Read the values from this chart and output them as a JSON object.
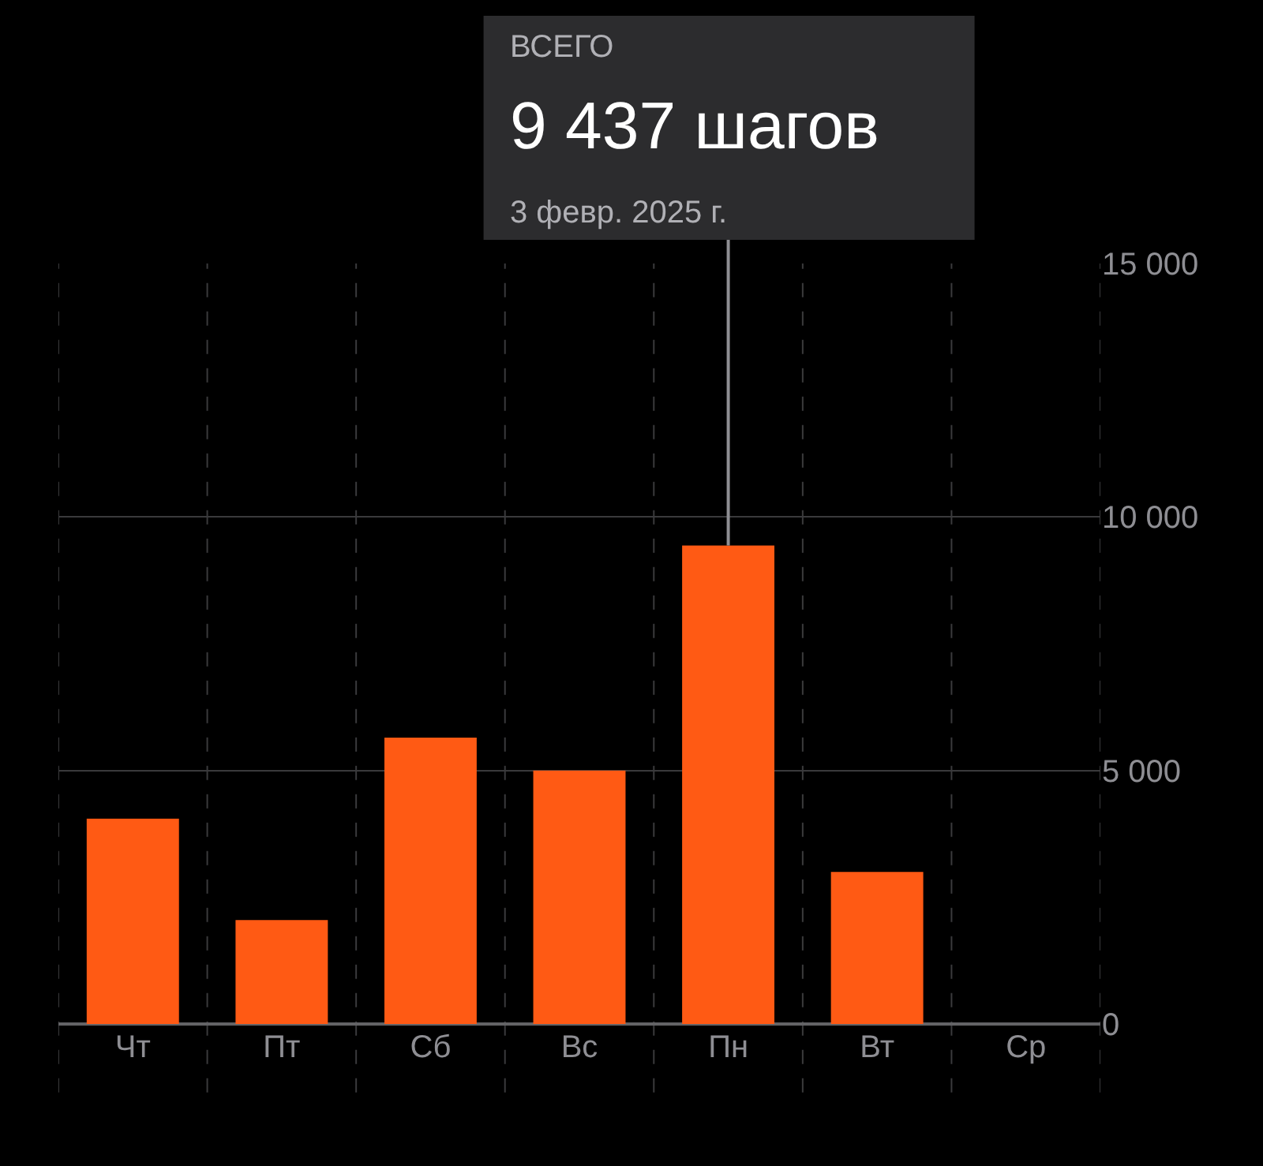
{
  "chart_data": {
    "type": "bar",
    "categories": [
      "Чт",
      "Пт",
      "Сб",
      "Вс",
      "Пн",
      "Вт",
      "Ср"
    ],
    "values": [
      4050,
      2050,
      5650,
      5000,
      9437,
      3000,
      0
    ],
    "color": "#ff5a14",
    "ylim": [
      0,
      15000
    ],
    "yticks": [
      0,
      {
        "value": 5000,
        "label": "5 000"
      },
      {
        "value": 10000,
        "label": "10 000"
      },
      {
        "value": 15000,
        "label": "15 000"
      }
    ],
    "grid": true,
    "annotations": [
      "ВСЕГО",
      {
        "text": "9 437 шагов",
        "x": "Пн",
        "y": 9437
      },
      "3 февр. 2025 г."
    ]
  }
}
